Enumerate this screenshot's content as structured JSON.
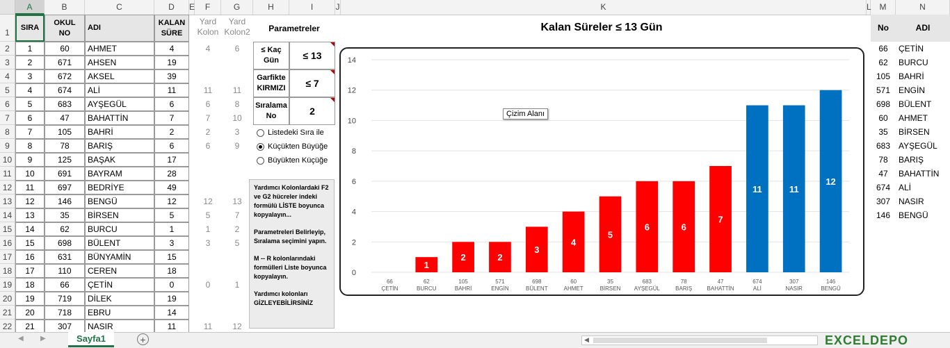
{
  "columns": [
    "A",
    "B",
    "C",
    "D",
    "E",
    "F",
    "G",
    "H",
    "I",
    "J",
    "K",
    "L",
    "M",
    "N"
  ],
  "row_numbers": [
    "1",
    "2",
    "3",
    "4",
    "5",
    "6",
    "7",
    "8",
    "9",
    "10",
    "11",
    "12",
    "13",
    "14",
    "15",
    "16",
    "17",
    "18",
    "19",
    "20",
    "21",
    "22"
  ],
  "table": {
    "headers": [
      "SIRA",
      "OKUL\nNO",
      "ADI",
      "KALAN\nSÜRE"
    ],
    "rows": [
      [
        "1",
        "60",
        "AHMET",
        "4"
      ],
      [
        "2",
        "671",
        "AHSEN",
        "19"
      ],
      [
        "3",
        "672",
        "AKSEL",
        "39"
      ],
      [
        "4",
        "674",
        "ALİ",
        "11"
      ],
      [
        "5",
        "683",
        "AYŞEGÜL",
        "6"
      ],
      [
        "6",
        "47",
        "BAHATTİN",
        "7"
      ],
      [
        "7",
        "105",
        "BAHRİ",
        "2"
      ],
      [
        "8",
        "78",
        "BARIŞ",
        "6"
      ],
      [
        "9",
        "125",
        "BAŞAK",
        "17"
      ],
      [
        "10",
        "691",
        "BAYRAM",
        "28"
      ],
      [
        "11",
        "697",
        "BEDRİYE",
        "49"
      ],
      [
        "12",
        "146",
        "BENGÜ",
        "12"
      ],
      [
        "13",
        "35",
        "BİRSEN",
        "5"
      ],
      [
        "14",
        "62",
        "BURCU",
        "1"
      ],
      [
        "15",
        "698",
        "BÜLENT",
        "3"
      ],
      [
        "16",
        "631",
        "BÜNYAMİN",
        "15"
      ],
      [
        "17",
        "110",
        "CEREN",
        "18"
      ],
      [
        "18",
        "66",
        "ÇETİN",
        "0"
      ],
      [
        "19",
        "719",
        "DİLEK",
        "19"
      ],
      [
        "20",
        "718",
        "EBRU",
        "14"
      ],
      [
        "21",
        "307",
        "NASIR",
        "11"
      ]
    ]
  },
  "helper": {
    "headers": [
      "Yard\nKolon",
      "Yard\nKolon2"
    ],
    "rows": [
      [
        "4",
        "6"
      ],
      [
        "",
        ""
      ],
      [
        "",
        ""
      ],
      [
        "11",
        "11"
      ],
      [
        "6",
        "8"
      ],
      [
        "7",
        "10"
      ],
      [
        "2",
        "3"
      ],
      [
        "6",
        "9"
      ],
      [
        "",
        ""
      ],
      [
        "",
        ""
      ],
      [
        "",
        ""
      ],
      [
        "12",
        "13"
      ],
      [
        "5",
        "7"
      ],
      [
        "1",
        "2"
      ],
      [
        "3",
        "5"
      ],
      [
        "",
        ""
      ],
      [
        "",
        ""
      ],
      [
        "0",
        "1"
      ],
      [
        "",
        ""
      ],
      [
        "",
        ""
      ],
      [
        "11",
        "12"
      ]
    ]
  },
  "params": {
    "title": "Parametreler",
    "items": [
      {
        "label": "≤ Kaç\nGün",
        "value": "≤ 13"
      },
      {
        "label": "Garfikte\nKIRMIZI",
        "value": "≤ 7"
      },
      {
        "label": "Sıralama\nNo",
        "value": "2"
      }
    ],
    "radios": [
      "Listedeki Sıra ile",
      "Küçükten Büyüğe",
      "Büyükten Küçüğe"
    ],
    "radio_selected": 1
  },
  "notes": [
    "Yardımcı Kolonlardaki F2 ve G2 hücreler indeki formülü LİSTE boyunca kopyalayın...",
    "Parametreleri Belirleyip, Sıralama seçimini yapın.",
    "M -- R kolonlarındaki formülleri Liste boyunca kopyalayın.",
    "Yardımcı kolonları GİZLEYEBİLİRSİNİZ"
  ],
  "chart_title": "Kalan Süreler  ≤ 13  Gün",
  "chart_tooltip": "Çizim Alanı",
  "chart_data": {
    "type": "bar",
    "title": "Kalan Süreler  ≤ 13  Gün",
    "categories": [
      [
        "66",
        "ÇETİN"
      ],
      [
        "62",
        "BURCU"
      ],
      [
        "105",
        "BAHRİ"
      ],
      [
        "571",
        "ENGİN"
      ],
      [
        "698",
        "BÜLENT"
      ],
      [
        "60",
        "AHMET"
      ],
      [
        "35",
        "BİRSEN"
      ],
      [
        "683",
        "AYŞEGÜL"
      ],
      [
        "78",
        "BARIŞ"
      ],
      [
        "47",
        "BAHATTİN"
      ],
      [
        "674",
        "ALİ"
      ],
      [
        "307",
        "NASIR"
      ],
      [
        "146",
        "BENGÜ"
      ]
    ],
    "values": [
      0,
      1,
      2,
      2,
      3,
      4,
      5,
      6,
      6,
      7,
      11,
      11,
      12
    ],
    "colors": {
      "red": "#ff0000",
      "blue": "#0070c0"
    },
    "red_threshold": 7,
    "ylim": [
      0,
      14
    ],
    "yticks": [
      0,
      2,
      4,
      6,
      8,
      10,
      12,
      14
    ],
    "grid": true,
    "data_labels": true
  },
  "right_table": {
    "headers": [
      "No",
      "ADI"
    ],
    "rows": [
      [
        "66",
        "ÇETİN"
      ],
      [
        "62",
        "BURCU"
      ],
      [
        "105",
        "BAHRİ"
      ],
      [
        "571",
        "ENGİN"
      ],
      [
        "698",
        "BÜLENT"
      ],
      [
        "60",
        "AHMET"
      ],
      [
        "35",
        "BİRSEN"
      ],
      [
        "683",
        "AYŞEGÜL"
      ],
      [
        "78",
        "BARIŞ"
      ],
      [
        "47",
        "BAHATTİN"
      ],
      [
        "674",
        "ALİ"
      ],
      [
        "307",
        "NASIR"
      ],
      [
        "146",
        "BENGÜ"
      ]
    ]
  },
  "sheet_tab": "Sayfa1",
  "add_sheet": "+",
  "watermark": "EXCELDEPO"
}
